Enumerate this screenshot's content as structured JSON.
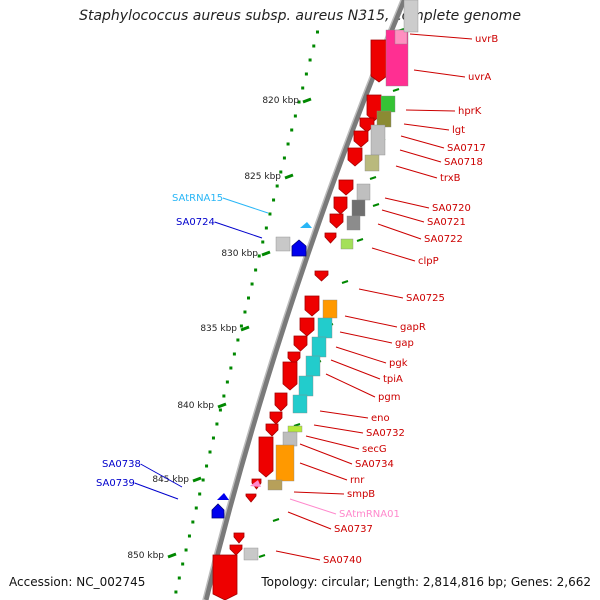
{
  "title": "Staphylococcus aureus subsp. aureus N315, complete genome",
  "footer": {
    "accession": "Accession: NC_002745",
    "topology": "Topology: circular; Length: 2,814,816 bp; Genes: 2,662"
  },
  "kbp_ticks": [
    "820 kbp",
    "825 kbp",
    "830 kbp",
    "835 kbp",
    "840 kbp",
    "845 kbp",
    "850 kbp"
  ],
  "colors": {
    "forward_gene": "#ee0000",
    "reverse_gene": "#0000ee",
    "trna": "#29b6f6",
    "tmrna": "#ff88cc",
    "scale_ticks": "#008800"
  },
  "right_labels": [
    {
      "text": "uvrB",
      "color": "#cc0000"
    },
    {
      "text": "uvrA",
      "color": "#cc0000"
    },
    {
      "text": "hprK",
      "color": "#cc0000"
    },
    {
      "text": "lgt",
      "color": "#cc0000"
    },
    {
      "text": "SA0717",
      "color": "#cc0000"
    },
    {
      "text": "SA0718",
      "color": "#cc0000"
    },
    {
      "text": "trxB",
      "color": "#cc0000"
    },
    {
      "text": "SA0720",
      "color": "#cc0000"
    },
    {
      "text": "SA0721",
      "color": "#cc0000"
    },
    {
      "text": "SA0722",
      "color": "#cc0000"
    },
    {
      "text": "clpP",
      "color": "#cc0000"
    },
    {
      "text": "SA0725",
      "color": "#cc0000"
    },
    {
      "text": "gapR",
      "color": "#cc0000"
    },
    {
      "text": "gap",
      "color": "#cc0000"
    },
    {
      "text": "pgk",
      "color": "#cc0000"
    },
    {
      "text": "tpiA",
      "color": "#cc0000"
    },
    {
      "text": "pgm",
      "color": "#cc0000"
    },
    {
      "text": "eno",
      "color": "#cc0000"
    },
    {
      "text": "SA0732",
      "color": "#cc0000"
    },
    {
      "text": "secG",
      "color": "#cc0000"
    },
    {
      "text": "SA0734",
      "color": "#cc0000"
    },
    {
      "text": "rnr",
      "color": "#cc0000"
    },
    {
      "text": "smpB",
      "color": "#cc0000"
    },
    {
      "text": "SAtmRNA01",
      "color": "#ff88cc"
    },
    {
      "text": "SA0737",
      "color": "#cc0000"
    },
    {
      "text": "SA0740",
      "color": "#cc0000"
    }
  ],
  "left_labels": [
    {
      "text": "SAtRNA15",
      "color": "#29b6f6"
    },
    {
      "text": "SA0724",
      "color": "#0000cc"
    },
    {
      "text": "SA0738",
      "color": "#0000cc"
    },
    {
      "text": "SA0739",
      "color": "#0000cc"
    }
  ]
}
